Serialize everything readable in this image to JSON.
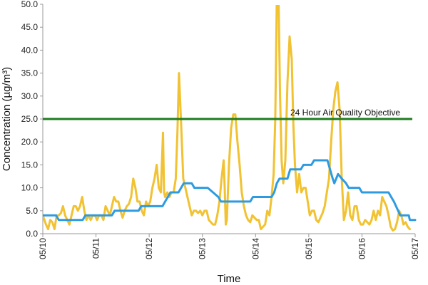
{
  "chart_data": {
    "type": "line",
    "xlabel": "Time",
    "ylabel": "Concentration (µg/m³)",
    "ylim": [
      0,
      50
    ],
    "yticks": [
      "0.0",
      "5.0",
      "10.0",
      "15.0",
      "20.0",
      "25.0",
      "30.0",
      "35.0",
      "40.0",
      "45.0",
      "50.0"
    ],
    "xlim": [
      0,
      7
    ],
    "x_tick_labels": [
      "05/10",
      "05/11",
      "05/12",
      "05/13",
      "05/14",
      "05/15",
      "05/16",
      "05/17"
    ],
    "grid": false,
    "objective": {
      "value": 25,
      "label": "24 Hour Air Quality Objective",
      "color": "#1e7d1e"
    },
    "series": [
      {
        "id": "hourly",
        "color": "#f1c232",
        "points": [
          [
            0.0,
            4.0
          ],
          [
            0.06,
            2.0
          ],
          [
            0.1,
            1.0
          ],
          [
            0.14,
            3.0
          ],
          [
            0.18,
            2.5
          ],
          [
            0.22,
            1.0
          ],
          [
            0.26,
            4.0
          ],
          [
            0.3,
            4.0
          ],
          [
            0.34,
            4.5
          ],
          [
            0.38,
            6.0
          ],
          [
            0.42,
            4.0
          ],
          [
            0.46,
            3.0
          ],
          [
            0.5,
            2.0
          ],
          [
            0.54,
            4.0
          ],
          [
            0.58,
            6.0
          ],
          [
            0.62,
            6.0
          ],
          [
            0.66,
            5.0
          ],
          [
            0.7,
            6.0
          ],
          [
            0.74,
            8.0
          ],
          [
            0.78,
            5.0
          ],
          [
            0.82,
            3.0
          ],
          [
            0.86,
            4.0
          ],
          [
            0.9,
            3.0
          ],
          [
            0.94,
            4.0
          ],
          [
            0.98,
            4.0
          ],
          [
            1.02,
            3.0
          ],
          [
            1.06,
            4.0
          ],
          [
            1.1,
            4.0
          ],
          [
            1.14,
            3.0
          ],
          [
            1.18,
            6.0
          ],
          [
            1.22,
            5.0
          ],
          [
            1.26,
            4.0
          ],
          [
            1.3,
            6.0
          ],
          [
            1.34,
            8.0
          ],
          [
            1.38,
            7.0
          ],
          [
            1.42,
            7.0
          ],
          [
            1.46,
            5.0
          ],
          [
            1.5,
            3.5
          ],
          [
            1.54,
            5.0
          ],
          [
            1.58,
            6.0
          ],
          [
            1.62,
            6.5
          ],
          [
            1.66,
            8.0
          ],
          [
            1.7,
            12.0
          ],
          [
            1.74,
            10.0
          ],
          [
            1.78,
            7.0
          ],
          [
            1.82,
            7.0
          ],
          [
            1.86,
            5.0
          ],
          [
            1.9,
            4.0
          ],
          [
            1.94,
            7.0
          ],
          [
            1.98,
            6.0
          ],
          [
            2.02,
            7.0
          ],
          [
            2.06,
            10.0
          ],
          [
            2.1,
            12.0
          ],
          [
            2.14,
            15.0
          ],
          [
            2.18,
            10.0
          ],
          [
            2.22,
            9.0
          ],
          [
            2.26,
            22.0
          ],
          [
            2.28,
            9.0
          ],
          [
            2.3,
            8.0
          ],
          [
            2.34,
            9.0
          ],
          [
            2.38,
            8.0
          ],
          [
            2.42,
            9.0
          ],
          [
            2.46,
            9.0
          ],
          [
            2.5,
            12.0
          ],
          [
            2.53,
            22.0
          ],
          [
            2.56,
            35.0
          ],
          [
            2.6,
            24.0
          ],
          [
            2.64,
            12.0
          ],
          [
            2.68,
            10.0
          ],
          [
            2.72,
            8.0
          ],
          [
            2.76,
            6.0
          ],
          [
            2.8,
            4.0
          ],
          [
            2.84,
            5.0
          ],
          [
            2.88,
            5.0
          ],
          [
            2.92,
            4.5
          ],
          [
            2.96,
            5.0
          ],
          [
            3.0,
            4.0
          ],
          [
            3.04,
            5.0
          ],
          [
            3.08,
            5.0
          ],
          [
            3.12,
            3.0
          ],
          [
            3.16,
            2.5
          ],
          [
            3.2,
            2.0
          ],
          [
            3.24,
            2.0
          ],
          [
            3.28,
            4.0
          ],
          [
            3.32,
            7.0
          ],
          [
            3.36,
            12.0
          ],
          [
            3.4,
            16.0
          ],
          [
            3.42,
            10.0
          ],
          [
            3.44,
            2.0
          ],
          [
            3.46,
            3.0
          ],
          [
            3.5,
            15.0
          ],
          [
            3.54,
            23.0
          ],
          [
            3.58,
            26.0
          ],
          [
            3.62,
            26.0
          ],
          [
            3.66,
            20.0
          ],
          [
            3.7,
            15.0
          ],
          [
            3.74,
            9.0
          ],
          [
            3.78,
            6.0
          ],
          [
            3.82,
            4.0
          ],
          [
            3.86,
            3.0
          ],
          [
            3.9,
            2.5
          ],
          [
            3.94,
            4.0
          ],
          [
            3.98,
            3.5
          ],
          [
            4.02,
            3.0
          ],
          [
            4.06,
            3.0
          ],
          [
            4.1,
            1.0
          ],
          [
            4.14,
            1.5
          ],
          [
            4.18,
            2.0
          ],
          [
            4.22,
            5.0
          ],
          [
            4.26,
            4.0
          ],
          [
            4.3,
            8.0
          ],
          [
            4.34,
            13.0
          ],
          [
            4.37,
            25.0
          ],
          [
            4.4,
            52.0
          ],
          [
            4.43,
            52.0
          ],
          [
            4.46,
            30.0
          ],
          [
            4.49,
            16.0
          ],
          [
            4.52,
            11.0
          ],
          [
            4.56,
            16.0
          ],
          [
            4.6,
            33.0
          ],
          [
            4.64,
            43.0
          ],
          [
            4.68,
            38.0
          ],
          [
            4.71,
            24.0
          ],
          [
            4.74,
            15.0
          ],
          [
            4.78,
            9.0
          ],
          [
            4.82,
            13.0
          ],
          [
            4.86,
            9.0
          ],
          [
            4.9,
            10.0
          ],
          [
            4.94,
            10.0
          ],
          [
            4.98,
            7.0
          ],
          [
            5.02,
            4.0
          ],
          [
            5.06,
            5.0
          ],
          [
            5.1,
            5.0
          ],
          [
            5.14,
            3.0
          ],
          [
            5.18,
            2.5
          ],
          [
            5.22,
            3.5
          ],
          [
            5.26,
            4.5
          ],
          [
            5.3,
            6.0
          ],
          [
            5.34,
            9.0
          ],
          [
            5.38,
            12.0
          ],
          [
            5.42,
            20.0
          ],
          [
            5.46,
            27.0
          ],
          [
            5.5,
            31.0
          ],
          [
            5.54,
            33.0
          ],
          [
            5.58,
            27.0
          ],
          [
            5.62,
            12.0
          ],
          [
            5.66,
            3.0
          ],
          [
            5.7,
            5.0
          ],
          [
            5.74,
            9.0
          ],
          [
            5.78,
            4.0
          ],
          [
            5.82,
            3.0
          ],
          [
            5.86,
            6.0
          ],
          [
            5.9,
            6.0
          ],
          [
            5.94,
            3.0
          ],
          [
            5.98,
            2.0
          ],
          [
            6.02,
            2.0
          ],
          [
            6.06,
            3.0
          ],
          [
            6.1,
            2.5
          ],
          [
            6.14,
            2.0
          ],
          [
            6.18,
            3.0
          ],
          [
            6.22,
            5.0
          ],
          [
            6.26,
            3.0
          ],
          [
            6.3,
            5.0
          ],
          [
            6.34,
            4.0
          ],
          [
            6.38,
            8.0
          ],
          [
            6.42,
            7.0
          ],
          [
            6.46,
            6.0
          ],
          [
            6.5,
            4.0
          ],
          [
            6.54,
            1.5
          ],
          [
            6.58,
            0.7
          ],
          [
            6.62,
            1.0
          ],
          [
            6.66,
            2.5
          ],
          [
            6.7,
            5.0
          ],
          [
            6.74,
            4.0
          ],
          [
            6.78,
            2.0
          ],
          [
            6.82,
            2.5
          ],
          [
            6.86,
            1.5
          ],
          [
            6.9,
            1.0
          ]
        ]
      },
      {
        "id": "rolling-24h",
        "color": "#2e9be0",
        "points": [
          [
            0.0,
            4.0
          ],
          [
            0.25,
            4.0
          ],
          [
            0.3,
            3.0
          ],
          [
            0.75,
            3.0
          ],
          [
            0.8,
            4.0
          ],
          [
            1.3,
            4.0
          ],
          [
            1.35,
            5.0
          ],
          [
            1.7,
            5.0
          ],
          [
            1.8,
            5.0
          ],
          [
            1.85,
            6.0
          ],
          [
            2.25,
            6.0
          ],
          [
            2.3,
            7.0
          ],
          [
            2.35,
            8.0
          ],
          [
            2.4,
            9.0
          ],
          [
            2.55,
            9.0
          ],
          [
            2.6,
            10.0
          ],
          [
            2.65,
            11.0
          ],
          [
            2.8,
            11.0
          ],
          [
            2.85,
            10.0
          ],
          [
            3.1,
            10.0
          ],
          [
            3.2,
            9.0
          ],
          [
            3.3,
            8.0
          ],
          [
            3.35,
            7.0
          ],
          [
            3.9,
            7.0
          ],
          [
            3.95,
            8.0
          ],
          [
            4.3,
            8.0
          ],
          [
            4.35,
            9.0
          ],
          [
            4.4,
            11.0
          ],
          [
            4.45,
            12.0
          ],
          [
            4.6,
            12.0
          ],
          [
            4.65,
            14.0
          ],
          [
            4.85,
            14.0
          ],
          [
            4.9,
            15.0
          ],
          [
            5.05,
            15.0
          ],
          [
            5.1,
            16.0
          ],
          [
            5.35,
            16.0
          ],
          [
            5.4,
            14.0
          ],
          [
            5.45,
            12.0
          ],
          [
            5.48,
            11.0
          ],
          [
            5.55,
            13.0
          ],
          [
            5.62,
            12.0
          ],
          [
            5.7,
            11.0
          ],
          [
            5.75,
            10.0
          ],
          [
            5.95,
            10.0
          ],
          [
            6.0,
            9.0
          ],
          [
            6.5,
            9.0
          ],
          [
            6.55,
            8.0
          ],
          [
            6.6,
            7.0
          ],
          [
            6.68,
            5.0
          ],
          [
            6.72,
            4.0
          ],
          [
            6.88,
            4.0
          ],
          [
            6.9,
            3.0
          ],
          [
            7.0,
            3.0
          ]
        ]
      }
    ]
  }
}
